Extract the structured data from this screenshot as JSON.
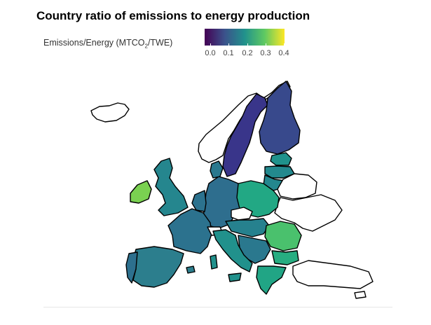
{
  "title": "Country ratio of emissions to energy production",
  "legend": {
    "label_main": "Emissions/Energy (MTCO",
    "label_sub": "2",
    "label_tail": "/TWE)",
    "ticks": [
      "0.0",
      "0.1",
      "0.2",
      "0.3",
      "0.4"
    ],
    "palette": "viridis",
    "range": [
      0,
      0.4
    ]
  },
  "countries": {
    "sweden": {
      "color": "#39358a"
    },
    "finland": {
      "color": "#38498c"
    },
    "norway": {
      "color": "#ffffff"
    },
    "ireland": {
      "color": "#7ad151"
    },
    "uk": {
      "color": "#25868e"
    },
    "france": {
      "color": "#2c728e"
    },
    "spain": {
      "color": "#2c7e8d"
    },
    "portugal": {
      "color": "#2d708e"
    },
    "germany": {
      "color": "#2e6e8e"
    },
    "poland": {
      "color": "#22a884"
    },
    "romania": {
      "color": "#4ac16d"
    },
    "bulgaria": {
      "color": "#27ad81"
    },
    "greece": {
      "color": "#21a585"
    },
    "italy": {
      "color": "#21918c"
    },
    "estonia": {
      "color": "#20928c"
    },
    "latvia": {
      "color": "#23898e"
    },
    "lithuania": {
      "color": "#24878e"
    },
    "belarus": {
      "color": "#ffffff"
    },
    "ukraine": {
      "color": "#ffffff"
    },
    "turkey": {
      "color": "#ffffff"
    }
  }
}
